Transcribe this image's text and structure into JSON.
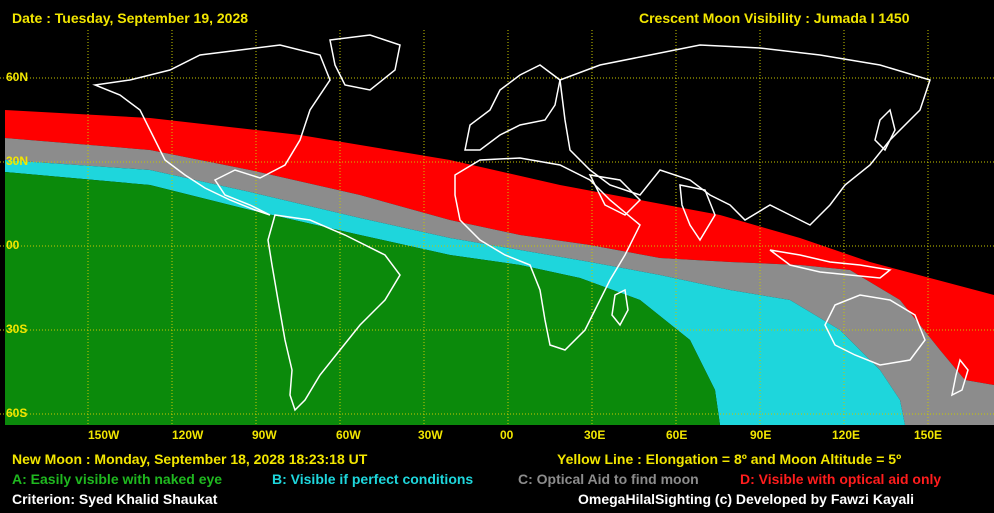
{
  "header": {
    "date_text": "Date : Tuesday, September 19, 2028",
    "title_text": "Crescent Moon Visibility : Jumada I  1450"
  },
  "map": {
    "lat_labels": [
      "60N",
      "30N",
      "00",
      "30S",
      "60S"
    ],
    "lon_labels": [
      "150W",
      "120W",
      "90W",
      "60W",
      "30W",
      "00",
      "30E",
      "60E",
      "90E",
      "120E",
      "150E"
    ],
    "colors": {
      "zone_a": "#0b8a0b",
      "zone_b": "#1ed6dc",
      "zone_c": "#8c8c8c",
      "zone_d": "#ff0000",
      "grid": "#c8c800",
      "coast": "#ffffff"
    }
  },
  "footer": {
    "new_moon": "New Moon : Monday, September 18, 2028  18:23:18  UT",
    "yellow_line": "Yellow Line : Elongation = 8º  and Moon Altitude = 5º",
    "legend_a": "A: Easily visible with naked eye",
    "legend_b": "B: Visible if perfect conditions",
    "legend_c": "C: Optical Aid to find moon",
    "legend_d": "D: Visible with optical aid only",
    "criterion": "Criterion: Syed Khalid Shaukat",
    "credit": "OmegaHilalSighting  (c)  Developed by Fawzi Kayali"
  }
}
